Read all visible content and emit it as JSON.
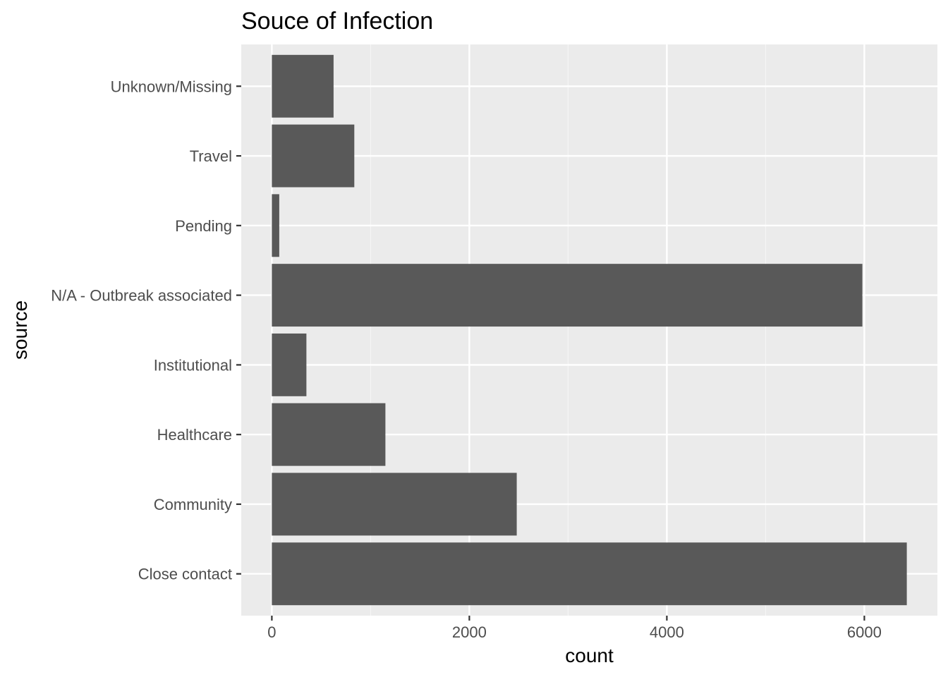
{
  "chart_data": {
    "type": "bar",
    "orientation": "horizontal",
    "title": "Souce of Infection",
    "xlabel": "count",
    "ylabel": "source",
    "categories": [
      "Close contact",
      "Community",
      "Healthcare",
      "Institutional",
      "N/A - Outbreak associated",
      "Pending",
      "Travel",
      "Unknown/Missing"
    ],
    "values": [
      6430,
      2480,
      1150,
      350,
      5980,
      75,
      835,
      625
    ],
    "xlim": [
      -310,
      6740
    ],
    "xticks": [
      0,
      2000,
      4000,
      6000
    ],
    "grid": true,
    "legend": "none",
    "colors": {
      "bar": "#595959",
      "panel": "#ebebeb",
      "grid_major": "#ffffff",
      "grid_minor": "#f5f5f5",
      "tick": "#333333"
    }
  }
}
